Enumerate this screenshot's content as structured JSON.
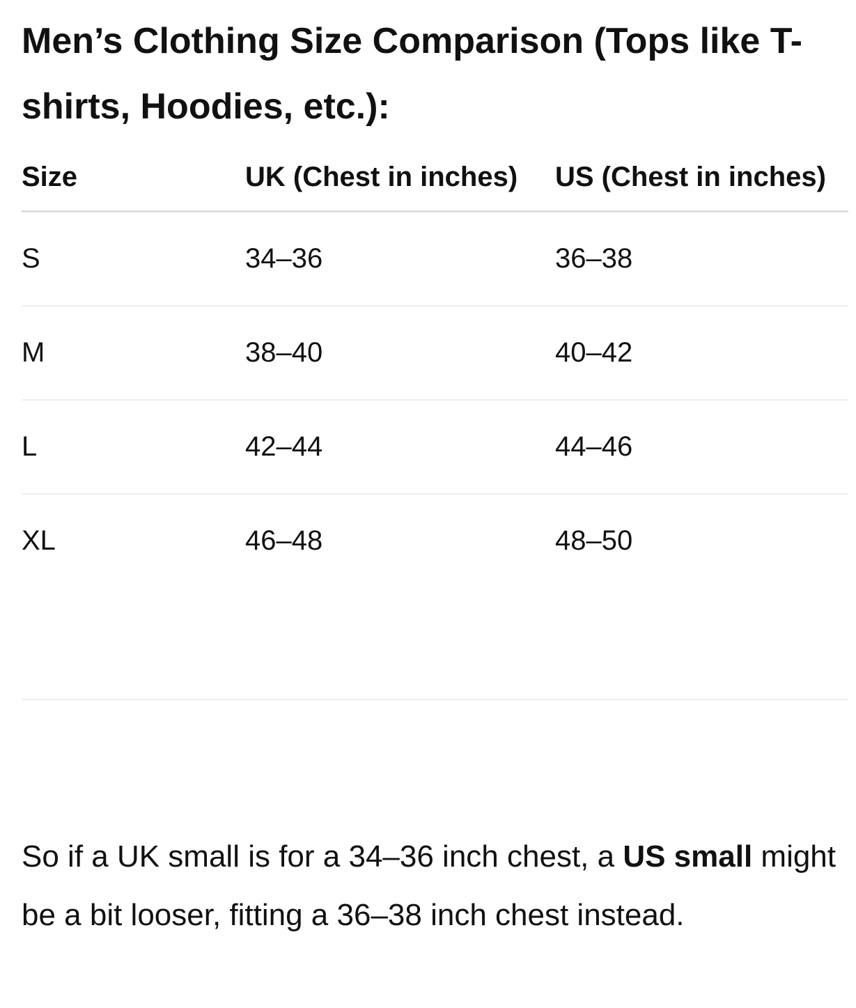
{
  "title": "Men’s Clothing Size Comparison (Tops like T-shirts, Hoodies, etc.):",
  "table": {
    "headers": [
      "Size",
      "UK (Chest in inches)",
      "US (Chest in inches)"
    ],
    "rows": [
      [
        "S",
        "34–36",
        "36–38"
      ],
      [
        "M",
        "38–40",
        "40–42"
      ],
      [
        "L",
        "42–44",
        "44–46"
      ],
      [
        "XL",
        "46–48",
        "48–50"
      ]
    ]
  },
  "paragraph": {
    "before": "So if a UK small is for a 34–36 inch chest, a ",
    "bold": "US small",
    "after": " might be a bit looser, fitting a 36–38 inch chest instead."
  }
}
